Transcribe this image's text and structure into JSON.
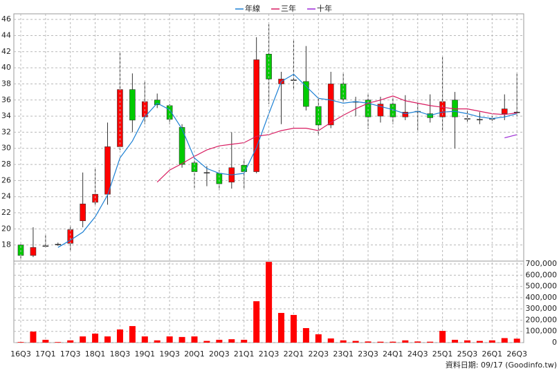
{
  "chart_data": [
    {
      "type": "candlestick",
      "open": [
        18,
        16.7,
        17.9,
        18.1,
        18.2,
        21,
        23.3,
        24.3,
        30.2,
        37.3,
        33.9,
        36,
        35.3,
        32.6,
        28.2,
        27,
        26.9,
        25.8,
        27.9,
        27.1,
        41.7,
        38,
        38.5,
        38.3,
        35.2,
        32.9,
        38,
        35.8,
        36,
        34,
        35.5,
        33.9,
        34.6,
        34.3,
        33.9,
        36,
        33.7,
        33.6,
        33.7,
        34.3,
        34.5
      ],
      "high": [
        18.1,
        20.2,
        19.2,
        18.3,
        20.4,
        27,
        27.5,
        33.2,
        42,
        39.3,
        38.3,
        36.8,
        35.5,
        33,
        28.8,
        27.8,
        27.3,
        32,
        28.7,
        43.8,
        45.4,
        39.5,
        43.4,
        42.7,
        36.2,
        39.5,
        39.3,
        36.4,
        36.7,
        36.4,
        36.3,
        36.6,
        35.6,
        36.7,
        41.4,
        37,
        34.8,
        34.5,
        34,
        36.7,
        39.3
      ],
      "low": [
        16.2,
        16.5,
        17.7,
        17.9,
        17.3,
        20.2,
        23,
        23,
        29.8,
        32,
        33,
        35,
        33,
        27.6,
        25.1,
        25.3,
        24.8,
        25,
        25,
        26.9,
        35.5,
        33,
        37.2,
        34.7,
        31.6,
        32.5,
        35.7,
        34,
        32.4,
        33.2,
        33,
        33.5,
        32.2,
        33.2,
        32,
        30,
        33.3,
        33,
        33.4,
        33.5,
        34
      ],
      "close": [
        16.7,
        17.7,
        17.9,
        18.1,
        19.9,
        23.1,
        24.3,
        30.2,
        37.3,
        33.5,
        35.8,
        35.4,
        33.6,
        28,
        27.1,
        27,
        25.6,
        27.6,
        27.1,
        41,
        38.6,
        38.6,
        38.5,
        35.2,
        32.9,
        38,
        36.1,
        35.8,
        33.9,
        35.5,
        33.9,
        34.5,
        34.6,
        33.8,
        35.8,
        33.9,
        33.7,
        33.6,
        33.7,
        34.9,
        34.5
      ],
      "up_color": "#ff0000",
      "down_color": "#00cc00",
      "series": [
        {
          "name": "年線",
          "color": "#1a7fd4",
          "values": [
            null,
            null,
            null,
            17.7,
            18.6,
            19.6,
            21.5,
            24.2,
            28.8,
            30.9,
            33.9,
            35.6,
            34.8,
            32.4,
            28.8,
            27.5,
            26.9,
            26.7,
            26.9,
            30.1,
            34.3,
            38.3,
            39.2,
            37.7,
            36.2,
            36,
            35.6,
            35.8,
            35.6,
            35.2,
            34.8,
            34.3,
            34.6,
            34.1,
            34.5,
            34.6,
            34.3,
            33.9,
            33.7,
            33.9,
            34.3
          ]
        },
        {
          "name": "三年",
          "color": "#d81b60",
          "values": [
            null,
            null,
            null,
            null,
            null,
            null,
            null,
            null,
            null,
            null,
            null,
            25.8,
            27.3,
            28.1,
            29,
            29.8,
            30.3,
            30.5,
            30.7,
            31.5,
            31.7,
            32.2,
            32.5,
            32.5,
            32.2,
            33.2,
            34.1,
            34.9,
            35.6,
            36,
            36.5,
            35.9,
            35.6,
            35.3,
            35.1,
            34.9,
            34.9,
            34.6,
            34.3,
            34.2,
            34.4
          ]
        },
        {
          "name": "十年",
          "color": "#9c27d6",
          "values": [
            null,
            null,
            null,
            null,
            null,
            null,
            null,
            null,
            null,
            null,
            null,
            null,
            null,
            null,
            null,
            null,
            null,
            null,
            null,
            null,
            null,
            null,
            null,
            null,
            null,
            null,
            null,
            null,
            null,
            null,
            null,
            null,
            null,
            null,
            null,
            null,
            null,
            null,
            null,
            31.3,
            31.7
          ]
        }
      ],
      "ylim": [
        16,
        46.7
      ],
      "yticks": [
        18,
        20,
        22,
        24,
        26,
        28,
        30,
        32,
        34,
        36,
        38,
        40,
        42,
        44,
        46
      ],
      "grid": true
    },
    {
      "type": "bar",
      "categories": [
        "16Q3",
        null,
        "17Q1",
        null,
        "17Q3",
        null,
        "18Q1",
        null,
        "18Q3",
        null,
        "19Q1",
        null,
        "19Q3",
        null,
        "20Q1",
        null,
        "20Q3",
        null,
        "21Q1",
        null,
        "21Q3",
        null,
        "22Q1",
        null,
        "22Q3",
        null,
        "23Q1",
        null,
        "23Q3",
        null,
        "24Q1",
        null,
        "24Q3",
        null,
        "25Q1",
        null,
        "25Q3",
        null,
        "26Q1",
        null,
        "26Q3"
      ],
      "values": [
        5000,
        98000,
        25000,
        5000,
        20000,
        55000,
        80000,
        55000,
        117000,
        147000,
        55000,
        20000,
        55000,
        50000,
        55000,
        15000,
        25000,
        30000,
        25000,
        368000,
        718000,
        264000,
        246000,
        129000,
        74000,
        37000,
        20000,
        15000,
        10000,
        8000,
        8000,
        20000,
        10000,
        8000,
        104000,
        25000,
        20000,
        15000,
        20000,
        40000,
        35000
      ],
      "color": "#ff0000",
      "ylim": [
        0,
        725000
      ],
      "yticks": [
        0,
        {
          "value": 100000,
          "label": "100,000"
        },
        {
          "value": 200000,
          "label": "200,000"
        },
        {
          "value": 300000,
          "label": "300,000"
        },
        {
          "value": 400000,
          "label": "400,000"
        },
        {
          "value": 500000,
          "label": "500,000"
        },
        {
          "value": 600000,
          "label": "600,000"
        },
        {
          "value": 700000,
          "label": "700,000"
        }
      ],
      "grid": true,
      "footnote": "資料日期: 09/17 (Goodinfo.tw)"
    }
  ]
}
